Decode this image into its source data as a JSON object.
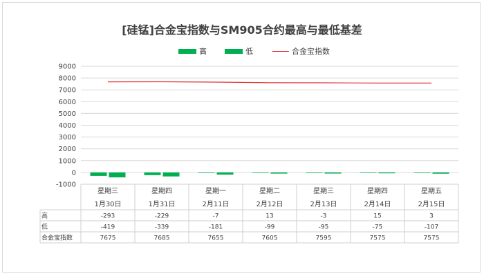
{
  "chart_data": {
    "type": "bar",
    "title": "[硅锰]合金宝指数与SM905合约最高与最低基差",
    "weekdays": [
      "星期三",
      "星期四",
      "星期一",
      "星期二",
      "星期三",
      "星期四",
      "星期五"
    ],
    "dates": [
      "1月30日",
      "1月31日",
      "2月11日",
      "2月12日",
      "2月13日",
      "2月14日",
      "2月15日"
    ],
    "series": [
      {
        "name": "高",
        "type": "bar",
        "values": [
          -293,
          -229,
          -7,
          13,
          -3,
          15,
          3
        ],
        "color": "#00b050"
      },
      {
        "name": "低",
        "type": "bar",
        "values": [
          -419,
          -339,
          -181,
          -99,
          -95,
          -75,
          -107
        ],
        "color": "#00b050"
      },
      {
        "name": "合金宝指数",
        "type": "line",
        "values": [
          7675,
          7685,
          7655,
          7605,
          7595,
          7575,
          7575
        ],
        "color": "#e03030"
      }
    ],
    "yticks": [
      9000,
      8000,
      7000,
      6000,
      5000,
      4000,
      3000,
      2000,
      1000,
      0,
      -1000
    ],
    "ylim": [
      -1000,
      9000
    ],
    "grid": true,
    "legend_position": "top",
    "data_table": {
      "row_headers": [
        "高",
        "低",
        "合金宝指数"
      ]
    }
  }
}
